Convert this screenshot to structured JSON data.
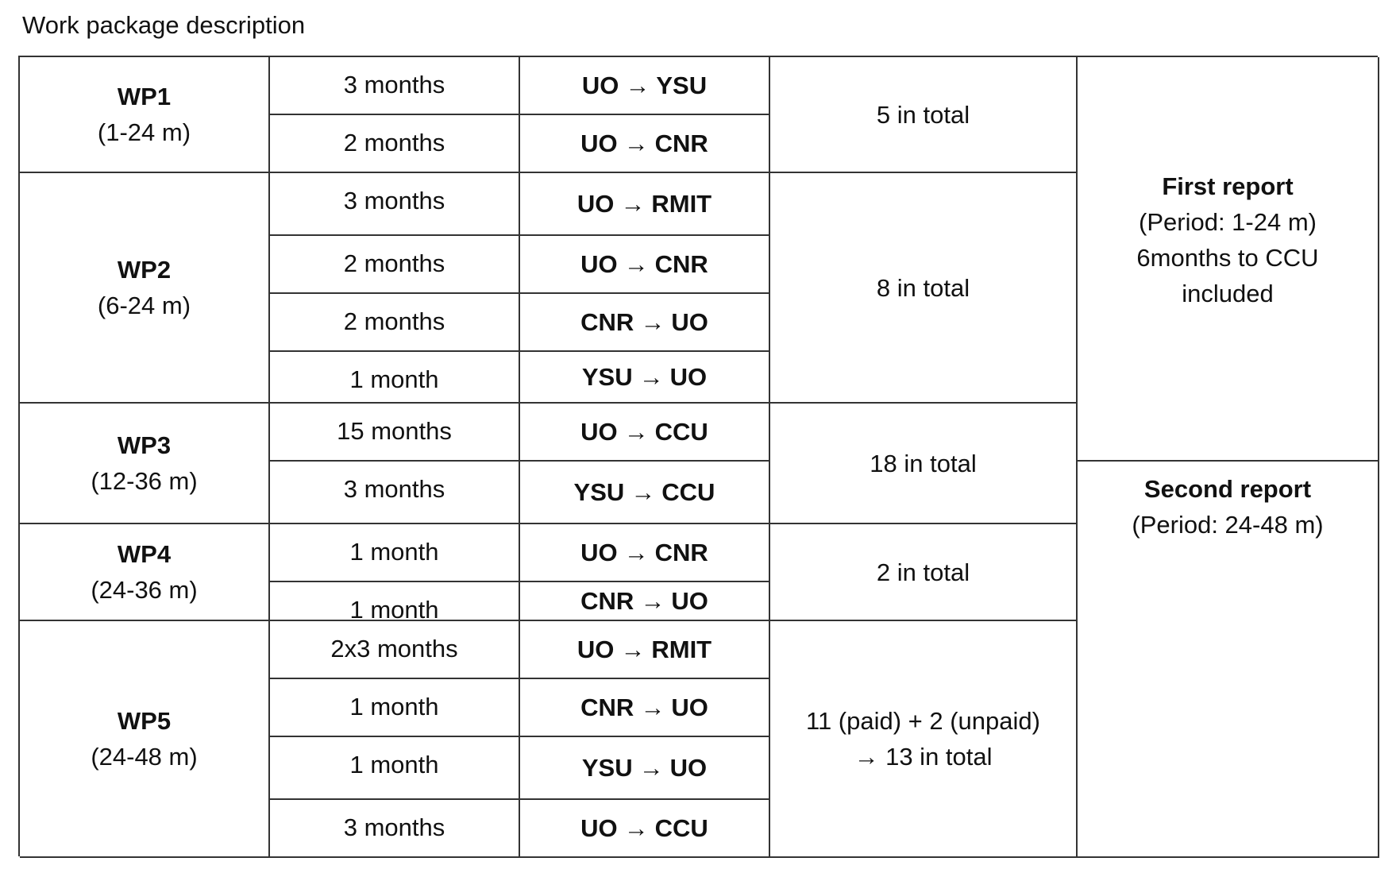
{
  "title": "Work package description",
  "work_packages": [
    {
      "name": "WP1",
      "period": "(1-24 m)",
      "total": [
        "5 in total"
      ],
      "rows": [
        {
          "duration": "3 months",
          "from": "UO",
          "to": "YSU"
        },
        {
          "duration": "2 months",
          "from": "UO",
          "to": "CNR"
        }
      ]
    },
    {
      "name": "WP2",
      "period": "(6-24 m)",
      "total": [
        "8 in total"
      ],
      "rows": [
        {
          "duration": "3 months",
          "from": "UO",
          "to": "RMIT"
        },
        {
          "duration": "2 months",
          "from": "UO",
          "to": "CNR"
        },
        {
          "duration": "2 months",
          "from": "CNR",
          "to": "UO"
        },
        {
          "duration": "1 month",
          "from": "YSU",
          "to": "UO"
        }
      ]
    },
    {
      "name": "WP3",
      "period": "(12-36 m)",
      "total": [
        "18 in total"
      ],
      "rows": [
        {
          "duration": "15 months",
          "from": "UO",
          "to": "CCU"
        },
        {
          "duration": "3 months",
          "from": "YSU",
          "to": "CCU"
        }
      ]
    },
    {
      "name": "WP4",
      "period": "(24-36 m)",
      "total": [
        "2 in total"
      ],
      "rows": [
        {
          "duration": "1 month",
          "from": "UO",
          "to": "CNR"
        },
        {
          "duration": "1 month",
          "from": "CNR",
          "to": "UO"
        }
      ]
    },
    {
      "name": "WP5",
      "period": "(24-48 m)",
      "total": [
        "11 (paid) + 2 (unpaid)",
        "→ 13 in total"
      ],
      "rows": [
        {
          "duration": "2x3 months",
          "from": "UO",
          "to": "RMIT"
        },
        {
          "duration": "1 month",
          "from": "CNR",
          "to": "UO"
        },
        {
          "duration": "1 month",
          "from": "YSU",
          "to": "UO"
        },
        {
          "duration": "3 months",
          "from": "UO",
          "to": "CCU"
        }
      ]
    }
  ],
  "reports": [
    {
      "title": "First report",
      "lines": [
        "(Period: 1-24 m)",
        "6months  to CCU",
        "included"
      ]
    },
    {
      "title": "Second report",
      "lines": [
        "(Period: 24-48 m)"
      ]
    }
  ],
  "arrow_symbol": "→"
}
